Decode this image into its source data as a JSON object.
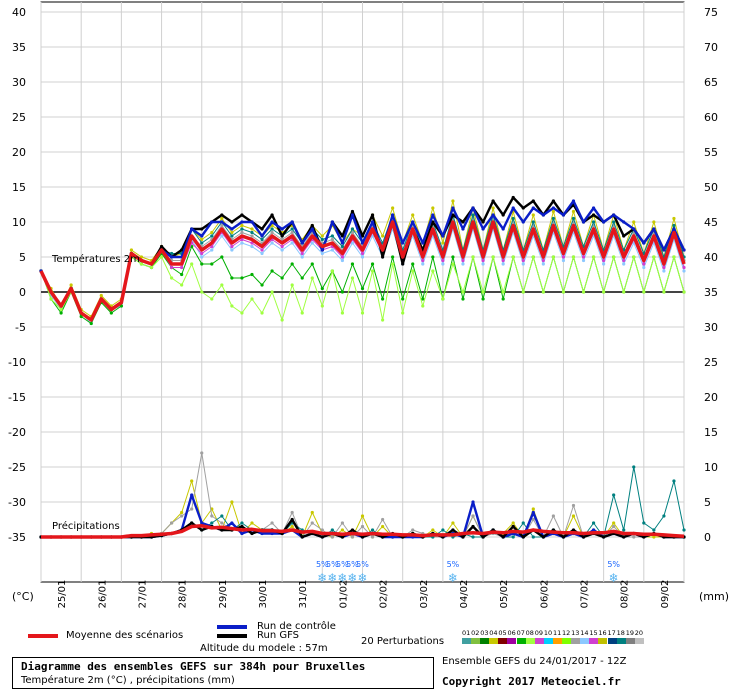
{
  "chart_data": {
    "type": "line",
    "title": "Diagramme des ensembles GEFS sur 384h pour Bruxelles",
    "subtitle": "Température 2m (°C) , précipitations (mm)",
    "left_axis": {
      "unit": "(°C)",
      "ticks": [
        40,
        35,
        30,
        25,
        20,
        15,
        10,
        5,
        0,
        -5,
        -10,
        -15,
        -20,
        -25,
        -30,
        -35
      ],
      "range": [
        -35,
        40
      ]
    },
    "right_axis": {
      "unit": "(mm)",
      "ticks": [
        75,
        70,
        65,
        60,
        55,
        50,
        45,
        40,
        35,
        30,
        25,
        20,
        15,
        10,
        5,
        0
      ],
      "range": [
        0,
        75
      ]
    },
    "x_labels": [
      "25/01",
      "26/01",
      "27/01",
      "28/01",
      "29/01",
      "30/01",
      "31/01",
      "01/02",
      "02/02",
      "03/02",
      "04/02",
      "05/02",
      "06/02",
      "07/02",
      "08/02",
      "09/02"
    ],
    "annotations": {
      "temperature": "Températures 2m",
      "precipitation": "Précipitations",
      "snow_percent": "5%"
    },
    "snow_markers_day": [
      7.0,
      7.25,
      7.5,
      7.75,
      8.0,
      10.25,
      14.25
    ],
    "series_temperature": [
      {
        "name": "Moyenne des scénarios",
        "color": "#e4161b",
        "values": [
          3.0,
          0.0,
          -2.0,
          0.5,
          -3.0,
          -4.0,
          -1.0,
          -2.5,
          -1.5,
          5.5,
          4.5,
          4.0,
          6.0,
          4.0,
          4.0,
          8.0,
          6.0,
          7.0,
          9.0,
          7.0,
          8.0,
          7.5,
          6.5,
          8.0,
          7.0,
          8.0,
          6.0,
          8.0,
          6.5,
          7.0,
          5.5,
          8.0,
          6.0,
          9.0,
          6.0,
          10.0,
          5.0,
          9.0,
          5.0,
          9.0,
          5.0,
          10.0,
          5.0,
          10.0,
          5.0,
          10.0,
          5.0,
          9.5,
          5.0,
          9.0,
          5.0,
          9.5,
          5.5,
          9.5,
          5.5,
          9.0,
          5.0,
          9.0,
          5.0,
          8.0,
          4.5,
          8.0,
          4.0,
          8.5,
          4.0
        ]
      },
      {
        "name": "Run de contrôle",
        "color": "#0a1ec8",
        "values": [
          3.0,
          0.0,
          -2.0,
          0.5,
          -3.0,
          -4.0,
          -1.0,
          -2.5,
          -1.5,
          5.5,
          4.5,
          4.0,
          6.0,
          5.0,
          5.0,
          9.0,
          8.0,
          10.0,
          10.0,
          9.0,
          10.0,
          10.0,
          8.0,
          10.0,
          9.0,
          10.0,
          7.0,
          9.0,
          6.0,
          10.0,
          7.0,
          11.0,
          7.0,
          10.0,
          6.0,
          11.0,
          7.0,
          10.0,
          7.0,
          11.0,
          8.0,
          12.0,
          9.0,
          12.0,
          9.0,
          11.0,
          9.0,
          12.0,
          10.0,
          12.0,
          11.0,
          12.0,
          11.0,
          13.0,
          10.0,
          12.0,
          10.0,
          11.0,
          10.0,
          9.0,
          7.0,
          9.0,
          6.0,
          9.0,
          6.0
        ]
      },
      {
        "name": "Run GFS",
        "color": "#000000",
        "values": [
          3.0,
          0.0,
          -2.0,
          0.5,
          -3.0,
          -4.0,
          -1.0,
          -2.5,
          -1.5,
          5.5,
          4.5,
          4.0,
          6.5,
          5.0,
          6.0,
          9.0,
          9.0,
          10.0,
          11.0,
          10.0,
          11.0,
          10.0,
          9.0,
          11.0,
          8.0,
          10.0,
          7.0,
          9.5,
          6.0,
          10.0,
          8.0,
          11.5,
          8.0,
          11.0,
          5.0,
          10.0,
          4.0,
          9.0,
          6.0,
          10.0,
          8.0,
          11.0,
          10.0,
          12.0,
          10.0,
          13.0,
          11.0,
          13.5,
          12.0,
          13.0,
          11.0,
          13.0,
          11.0,
          12.5,
          10.0,
          11.0,
          10.0,
          11.0,
          8.0,
          9.0,
          7.0,
          9.0,
          6.0,
          9.0,
          6.0
        ]
      },
      {
        "name": "01",
        "color": "#8cc8ff",
        "values": [
          3.0,
          -0.5,
          -2.5,
          0.5,
          -3.0,
          -4.5,
          -1.0,
          -2.5,
          -2.0,
          5.5,
          4.0,
          3.5,
          5.5,
          3.5,
          3.5,
          7.5,
          5.0,
          6.0,
          8.0,
          6.0,
          7.0,
          6.5,
          5.5,
          7.0,
          6.0,
          7.0,
          5.0,
          7.0,
          5.5,
          6.0,
          4.5,
          7.0,
          5.0,
          8.0,
          5.0,
          9.0,
          4.0,
          8.0,
          4.0,
          8.0,
          4.0,
          9.0,
          4.0,
          9.0,
          4.0,
          9.0,
          4.0,
          8.5,
          4.0,
          8.0,
          4.0,
          8.5,
          4.5,
          8.5,
          4.5,
          8.0,
          4.0,
          8.0,
          4.0,
          7.0,
          3.5,
          7.0,
          3.0,
          7.5,
          3.0
        ]
      },
      {
        "name": "04",
        "color": "#c8c800",
        "values": [
          3.0,
          0.5,
          -2.0,
          1.0,
          -2.5,
          -3.5,
          -0.5,
          -2.0,
          -1.0,
          6.0,
          5.0,
          4.5,
          6.5,
          5.0,
          5.5,
          9.0,
          7.5,
          8.5,
          10.5,
          8.5,
          9.5,
          9.0,
          8.0,
          9.5,
          8.5,
          9.5,
          7.5,
          9.5,
          8.0,
          9.5,
          7.0,
          9.0,
          8.0,
          11.0,
          8.0,
          12.0,
          7.0,
          11.0,
          7.0,
          12.0,
          7.0,
          13.0,
          6.0,
          12.0,
          6.0,
          12.0,
          6.0,
          11.5,
          6.0,
          11.0,
          6.0,
          11.5,
          6.5,
          11.5,
          6.5,
          11.0,
          6.0,
          11.0,
          6.0,
          10.0,
          5.5,
          10.0,
          5.0,
          10.5,
          5.0
        ]
      },
      {
        "name": "07",
        "color": "#00b000",
        "values": [
          3.0,
          -1.0,
          -3.0,
          0.0,
          -3.5,
          -4.5,
          -1.5,
          -3.0,
          -2.0,
          5.0,
          4.0,
          3.5,
          5.5,
          3.5,
          2.5,
          6.5,
          4.0,
          4.0,
          5.0,
          2.0,
          2.0,
          2.5,
          1.0,
          3.0,
          2.0,
          4.0,
          2.0,
          4.0,
          0.5,
          3.0,
          0.0,
          4.0,
          0.5,
          4.0,
          -1.0,
          5.0,
          -1.0,
          4.0,
          -1.0,
          5.0,
          -1.0,
          5.0,
          -1.0,
          5.0,
          -1.0,
          5.0,
          -1.0,
          5.0,
          0.0,
          5.0,
          0.0,
          5.0,
          0.0,
          5.0,
          0.0,
          5.0,
          0.0,
          5.0,
          0.0,
          5.0,
          0.0,
          5.0,
          0.0,
          5.0,
          0.0
        ]
      },
      {
        "name": "08",
        "color": "#a0ff40",
        "values": [
          3.0,
          -1.0,
          -2.5,
          0.0,
          -3.0,
          -4.0,
          -1.0,
          -2.5,
          -1.5,
          5.0,
          4.0,
          3.5,
          5.0,
          2.0,
          1.0,
          4.0,
          0.0,
          -1.0,
          1.0,
          -2.0,
          -3.0,
          -1.0,
          -3.0,
          0.0,
          -4.0,
          1.0,
          -3.0,
          2.0,
          -2.0,
          3.0,
          -3.0,
          2.0,
          -3.0,
          3.0,
          -4.0,
          4.0,
          -3.0,
          3.0,
          -2.0,
          3.0,
          -1.0,
          4.0,
          0.0,
          5.0,
          0.0,
          5.0,
          0.0,
          5.0,
          0.0,
          5.0,
          0.0,
          5.0,
          0.0,
          5.0,
          0.0,
          5.0,
          0.0,
          5.0,
          0.0,
          5.0,
          0.0,
          5.0,
          0.0,
          5.0,
          0.0
        ]
      },
      {
        "name": "13",
        "color": "#a0a0a0",
        "values": [
          3.0,
          0.0,
          -2.0,
          0.5,
          -3.0,
          -4.0,
          -1.0,
          -2.5,
          -1.5,
          5.5,
          4.5,
          4.0,
          6.0,
          4.5,
          4.5,
          8.0,
          6.5,
          7.5,
          9.5,
          7.5,
          8.5,
          8.0,
          7.0,
          8.5,
          7.5,
          8.5,
          6.5,
          8.5,
          7.0,
          7.5,
          6.0,
          8.5,
          6.5,
          9.5,
          6.5,
          10.5,
          5.5,
          9.5,
          5.5,
          9.5,
          5.5,
          10.5,
          5.5,
          10.5,
          5.5,
          10.5,
          5.5,
          10.0,
          5.5,
          9.5,
          5.5,
          10.0,
          6.0,
          10.0,
          6.0,
          9.5,
          5.5,
          9.5,
          5.5,
          8.5,
          5.0,
          8.5,
          4.5,
          9.0,
          4.5
        ]
      },
      {
        "name": "15",
        "color": "#d040d0",
        "values": [
          3.0,
          0.0,
          -2.0,
          0.5,
          -3.0,
          -4.0,
          -1.0,
          -2.5,
          -1.5,
          5.5,
          4.5,
          4.0,
          6.0,
          3.5,
          3.5,
          7.0,
          5.5,
          6.5,
          8.5,
          6.5,
          7.5,
          7.0,
          6.0,
          7.5,
          6.5,
          7.5,
          5.5,
          7.5,
          6.0,
          6.5,
          5.0,
          7.5,
          5.5,
          8.5,
          5.5,
          9.5,
          4.5,
          8.5,
          4.5,
          8.5,
          4.5,
          9.5,
          4.5,
          9.5,
          4.5,
          9.5,
          4.5,
          9.0,
          4.5,
          8.5,
          4.5,
          9.0,
          5.0,
          9.0,
          5.0,
          8.5,
          4.5,
          8.5,
          4.5,
          7.5,
          4.0,
          7.5,
          3.5,
          8.0,
          3.5
        ]
      },
      {
        "name": "18",
        "color": "#008080",
        "values": [
          3.0,
          0.0,
          -2.0,
          0.5,
          -3.0,
          -4.0,
          -1.0,
          -2.5,
          -1.5,
          5.5,
          4.5,
          4.0,
          6.0,
          5.5,
          5.5,
          9.0,
          7.0,
          8.0,
          10.0,
          8.0,
          9.0,
          8.5,
          7.5,
          9.0,
          8.0,
          9.0,
          7.0,
          9.0,
          7.5,
          8.0,
          6.5,
          9.0,
          7.0,
          10.0,
          7.0,
          11.0,
          6.0,
          10.0,
          6.0,
          10.0,
          6.0,
          11.0,
          6.0,
          11.0,
          6.0,
          11.0,
          6.0,
          10.5,
          6.0,
          10.0,
          6.0,
          10.5,
          6.5,
          10.5,
          6.5,
          10.0,
          6.0,
          10.0,
          6.0,
          9.0,
          5.5,
          9.0,
          5.0,
          9.5,
          5.0
        ]
      }
    ],
    "series_precipitation": [
      {
        "name": "Moyenne des scénarios",
        "color": "#e4161b",
        "values": [
          0.0,
          0.0,
          0.0,
          0.0,
          0.0,
          0.0,
          0.0,
          0.0,
          0.0,
          0.2,
          0.2,
          0.3,
          0.4,
          0.5,
          0.8,
          1.5,
          1.6,
          1.3,
          1.4,
          1.2,
          1.0,
          1.1,
          0.9,
          0.9,
          0.8,
          1.0,
          0.7,
          0.8,
          0.5,
          0.5,
          0.4,
          0.5,
          0.4,
          0.5,
          0.4,
          0.4,
          0.3,
          0.3,
          0.2,
          0.3,
          0.3,
          0.3,
          0.5,
          0.6,
          0.5,
          0.7,
          0.6,
          0.8,
          0.7,
          1.0,
          0.8,
          0.7,
          0.6,
          0.6,
          0.5,
          0.6,
          0.6,
          0.8,
          0.5,
          0.5,
          0.4,
          0.4,
          0.3,
          0.2,
          0.1
        ]
      },
      {
        "name": "04",
        "color": "#c8c800",
        "values": [
          0,
          0,
          0,
          0,
          0,
          0,
          0,
          0,
          0,
          0,
          0.2,
          0.5,
          0.5,
          2.0,
          3.5,
          8.0,
          2.0,
          4.0,
          1.0,
          5.0,
          0.5,
          2.0,
          1.0,
          0.5,
          0.5,
          1.5,
          0,
          3.5,
          0.5,
          0,
          1.0,
          0,
          3.0,
          0,
          1.5,
          0,
          0,
          0.5,
          0,
          1.0,
          0,
          2.0,
          0,
          3.0,
          0,
          1.0,
          0.5,
          2.0,
          0,
          4.0,
          0,
          0.5,
          0,
          3.0,
          0,
          1.0,
          0,
          2.0,
          0,
          0.5,
          0,
          0,
          0,
          0,
          0
        ]
      },
      {
        "name": "13",
        "color": "#a0a0a0",
        "values": [
          0,
          0,
          0,
          0,
          0,
          0,
          0,
          0,
          0,
          0,
          0.1,
          0.2,
          0.5,
          2.0,
          3.0,
          4.0,
          12.0,
          3.0,
          2.0,
          1.0,
          1.5,
          0.5,
          1.0,
          2.0,
          0.5,
          3.5,
          0,
          2.0,
          1.0,
          0,
          2.0,
          0,
          1.5,
          0,
          2.5,
          0,
          0,
          1.0,
          0.5,
          0,
          0,
          1.0,
          0,
          3.0,
          0,
          0.5,
          0,
          1.5,
          0,
          2.5,
          0,
          3.0,
          0,
          4.5,
          0,
          1.0,
          0,
          1.5,
          0,
          0,
          0,
          0.5,
          0,
          0,
          0
        ]
      },
      {
        "name": "18",
        "color": "#008080",
        "values": [
          0,
          0,
          0,
          0,
          0,
          0,
          0,
          0,
          0,
          0,
          0,
          0,
          0.2,
          0.5,
          1.0,
          2.0,
          1.0,
          2.0,
          3.0,
          1.0,
          2.0,
          1.0,
          0.5,
          1.0,
          0.5,
          2.0,
          1.0,
          0.5,
          0,
          1.0,
          0,
          0.5,
          0,
          1.0,
          0,
          0,
          0,
          0.5,
          0,
          0,
          1.0,
          0,
          0.5,
          0,
          0,
          1.0,
          0,
          0,
          2.0,
          0,
          0,
          1.0,
          0,
          0.5,
          0,
          2.0,
          0,
          6.0,
          1.0,
          10.0,
          2.0,
          1.0,
          3.0,
          8.0,
          1.0
        ]
      },
      {
        "name": "Run de contrôle",
        "color": "#0a1ec8",
        "values": [
          0,
          0,
          0,
          0,
          0,
          0,
          0,
          0,
          0,
          0,
          0,
          0,
          0.2,
          0.5,
          1.0,
          6.0,
          2.0,
          1.5,
          1.0,
          2.0,
          0.5,
          1.0,
          0.5,
          0.5,
          0.5,
          1.0,
          0,
          0.5,
          0,
          0.5,
          0,
          0.5,
          0,
          0.5,
          0,
          0,
          0,
          0,
          0,
          0.5,
          0,
          0.5,
          0,
          5.0,
          0,
          1.0,
          0,
          0.5,
          0,
          3.5,
          0,
          0.5,
          0,
          0.5,
          0,
          1.0,
          0,
          0.5,
          0,
          0.5,
          0,
          0.5,
          0,
          0,
          0
        ]
      },
      {
        "name": "Run GFS",
        "color": "#000000",
        "values": [
          0,
          0,
          0,
          0,
          0,
          0,
          0,
          0,
          0,
          0,
          0,
          0,
          0.2,
          0.5,
          1.0,
          2.0,
          1.0,
          1.5,
          1.0,
          1.0,
          1.5,
          0.5,
          1.0,
          1.0,
          0.5,
          2.5,
          0,
          0.5,
          0,
          0.5,
          0,
          1.0,
          0,
          0.5,
          0,
          0.5,
          0,
          0.5,
          0,
          0.5,
          0,
          1.0,
          0,
          1.5,
          0,
          1.0,
          0,
          1.5,
          0,
          1.0,
          0,
          1.0,
          0,
          1.0,
          0,
          0.5,
          0,
          0.5,
          0,
          0.5,
          0,
          0.5,
          0,
          0,
          0
        ]
      }
    ]
  },
  "labels": {
    "left_unit": "(°C)",
    "right_unit": "(mm)",
    "temp_annotation": "Températures 2m",
    "precip_annotation": "Précipitations",
    "snow_percent": "5%",
    "snow_glyph": "❄"
  },
  "legend": {
    "mean": "Moyenne des scénarios",
    "control": "Run de contrôle",
    "gfs": "Run GFS",
    "perturbations": "20 Perturbations",
    "altitude": "Altitude du modele : 57m",
    "perturbation_ids": [
      "01",
      "02",
      "03",
      "04",
      "05",
      "06",
      "07",
      "08",
      "09",
      "10",
      "11",
      "12",
      "13",
      "14",
      "15",
      "16",
      "17",
      "18",
      "19",
      "20"
    ],
    "perturbation_colors": [
      "#40a0a0",
      "#80c040",
      "#008000",
      "#c8c800",
      "#800000",
      "#a000a0",
      "#00b000",
      "#a0ff40",
      "#d040d0",
      "#00d0ff",
      "#ffa000",
      "#80ff00",
      "#a0a0a0",
      "#8cc8ff",
      "#d040d0",
      "#c0c000",
      "#004080",
      "#008080",
      "#808080",
      "#c0c0c0"
    ],
    "mean_color": "#e4161b",
    "control_color": "#0a1ec8",
    "gfs_color": "#000000"
  },
  "footer": {
    "title": "Diagramme des ensembles GEFS sur 384h pour Bruxelles",
    "subtitle": "Température 2m (°C) , précipitations (mm)",
    "run": "Ensemble GEFS du 24/01/2017 - 12Z",
    "copyright": "Copyright 2017 Meteociel.fr"
  }
}
